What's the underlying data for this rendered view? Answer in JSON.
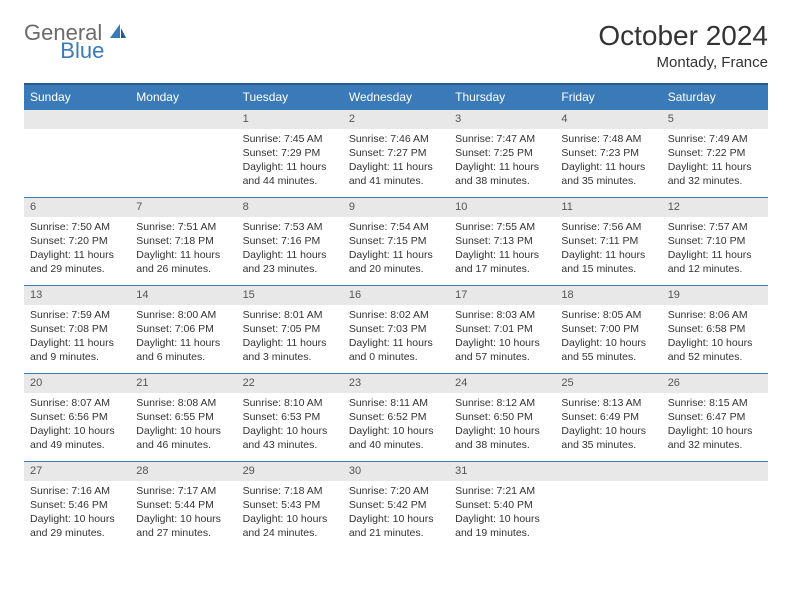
{
  "logo": {
    "gray": "General",
    "blue": "Blue"
  },
  "title": "October 2024",
  "location": "Montady, France",
  "colors": {
    "header_bg": "#3a7ab8",
    "header_border": "#2a5a8a",
    "daynum_bg": "#e8e8e8",
    "text": "#333333",
    "logo_gray": "#6b6b6b",
    "logo_blue": "#3a7ab8"
  },
  "weekdays": [
    "Sunday",
    "Monday",
    "Tuesday",
    "Wednesday",
    "Thursday",
    "Friday",
    "Saturday"
  ],
  "weeks": [
    [
      {
        "n": "",
        "sr": "",
        "ss": "",
        "dl": ""
      },
      {
        "n": "",
        "sr": "",
        "ss": "",
        "dl": ""
      },
      {
        "n": "1",
        "sr": "Sunrise: 7:45 AM",
        "ss": "Sunset: 7:29 PM",
        "dl": "Daylight: 11 hours and 44 minutes."
      },
      {
        "n": "2",
        "sr": "Sunrise: 7:46 AM",
        "ss": "Sunset: 7:27 PM",
        "dl": "Daylight: 11 hours and 41 minutes."
      },
      {
        "n": "3",
        "sr": "Sunrise: 7:47 AM",
        "ss": "Sunset: 7:25 PM",
        "dl": "Daylight: 11 hours and 38 minutes."
      },
      {
        "n": "4",
        "sr": "Sunrise: 7:48 AM",
        "ss": "Sunset: 7:23 PM",
        "dl": "Daylight: 11 hours and 35 minutes."
      },
      {
        "n": "5",
        "sr": "Sunrise: 7:49 AM",
        "ss": "Sunset: 7:22 PM",
        "dl": "Daylight: 11 hours and 32 minutes."
      }
    ],
    [
      {
        "n": "6",
        "sr": "Sunrise: 7:50 AM",
        "ss": "Sunset: 7:20 PM",
        "dl": "Daylight: 11 hours and 29 minutes."
      },
      {
        "n": "7",
        "sr": "Sunrise: 7:51 AM",
        "ss": "Sunset: 7:18 PM",
        "dl": "Daylight: 11 hours and 26 minutes."
      },
      {
        "n": "8",
        "sr": "Sunrise: 7:53 AM",
        "ss": "Sunset: 7:16 PM",
        "dl": "Daylight: 11 hours and 23 minutes."
      },
      {
        "n": "9",
        "sr": "Sunrise: 7:54 AM",
        "ss": "Sunset: 7:15 PM",
        "dl": "Daylight: 11 hours and 20 minutes."
      },
      {
        "n": "10",
        "sr": "Sunrise: 7:55 AM",
        "ss": "Sunset: 7:13 PM",
        "dl": "Daylight: 11 hours and 17 minutes."
      },
      {
        "n": "11",
        "sr": "Sunrise: 7:56 AM",
        "ss": "Sunset: 7:11 PM",
        "dl": "Daylight: 11 hours and 15 minutes."
      },
      {
        "n": "12",
        "sr": "Sunrise: 7:57 AM",
        "ss": "Sunset: 7:10 PM",
        "dl": "Daylight: 11 hours and 12 minutes."
      }
    ],
    [
      {
        "n": "13",
        "sr": "Sunrise: 7:59 AM",
        "ss": "Sunset: 7:08 PM",
        "dl": "Daylight: 11 hours and 9 minutes."
      },
      {
        "n": "14",
        "sr": "Sunrise: 8:00 AM",
        "ss": "Sunset: 7:06 PM",
        "dl": "Daylight: 11 hours and 6 minutes."
      },
      {
        "n": "15",
        "sr": "Sunrise: 8:01 AM",
        "ss": "Sunset: 7:05 PM",
        "dl": "Daylight: 11 hours and 3 minutes."
      },
      {
        "n": "16",
        "sr": "Sunrise: 8:02 AM",
        "ss": "Sunset: 7:03 PM",
        "dl": "Daylight: 11 hours and 0 minutes."
      },
      {
        "n": "17",
        "sr": "Sunrise: 8:03 AM",
        "ss": "Sunset: 7:01 PM",
        "dl": "Daylight: 10 hours and 57 minutes."
      },
      {
        "n": "18",
        "sr": "Sunrise: 8:05 AM",
        "ss": "Sunset: 7:00 PM",
        "dl": "Daylight: 10 hours and 55 minutes."
      },
      {
        "n": "19",
        "sr": "Sunrise: 8:06 AM",
        "ss": "Sunset: 6:58 PM",
        "dl": "Daylight: 10 hours and 52 minutes."
      }
    ],
    [
      {
        "n": "20",
        "sr": "Sunrise: 8:07 AM",
        "ss": "Sunset: 6:56 PM",
        "dl": "Daylight: 10 hours and 49 minutes."
      },
      {
        "n": "21",
        "sr": "Sunrise: 8:08 AM",
        "ss": "Sunset: 6:55 PM",
        "dl": "Daylight: 10 hours and 46 minutes."
      },
      {
        "n": "22",
        "sr": "Sunrise: 8:10 AM",
        "ss": "Sunset: 6:53 PM",
        "dl": "Daylight: 10 hours and 43 minutes."
      },
      {
        "n": "23",
        "sr": "Sunrise: 8:11 AM",
        "ss": "Sunset: 6:52 PM",
        "dl": "Daylight: 10 hours and 40 minutes."
      },
      {
        "n": "24",
        "sr": "Sunrise: 8:12 AM",
        "ss": "Sunset: 6:50 PM",
        "dl": "Daylight: 10 hours and 38 minutes."
      },
      {
        "n": "25",
        "sr": "Sunrise: 8:13 AM",
        "ss": "Sunset: 6:49 PM",
        "dl": "Daylight: 10 hours and 35 minutes."
      },
      {
        "n": "26",
        "sr": "Sunrise: 8:15 AM",
        "ss": "Sunset: 6:47 PM",
        "dl": "Daylight: 10 hours and 32 minutes."
      }
    ],
    [
      {
        "n": "27",
        "sr": "Sunrise: 7:16 AM",
        "ss": "Sunset: 5:46 PM",
        "dl": "Daylight: 10 hours and 29 minutes."
      },
      {
        "n": "28",
        "sr": "Sunrise: 7:17 AM",
        "ss": "Sunset: 5:44 PM",
        "dl": "Daylight: 10 hours and 27 minutes."
      },
      {
        "n": "29",
        "sr": "Sunrise: 7:18 AM",
        "ss": "Sunset: 5:43 PM",
        "dl": "Daylight: 10 hours and 24 minutes."
      },
      {
        "n": "30",
        "sr": "Sunrise: 7:20 AM",
        "ss": "Sunset: 5:42 PM",
        "dl": "Daylight: 10 hours and 21 minutes."
      },
      {
        "n": "31",
        "sr": "Sunrise: 7:21 AM",
        "ss": "Sunset: 5:40 PM",
        "dl": "Daylight: 10 hours and 19 minutes."
      },
      {
        "n": "",
        "sr": "",
        "ss": "",
        "dl": ""
      },
      {
        "n": "",
        "sr": "",
        "ss": "",
        "dl": ""
      }
    ]
  ]
}
